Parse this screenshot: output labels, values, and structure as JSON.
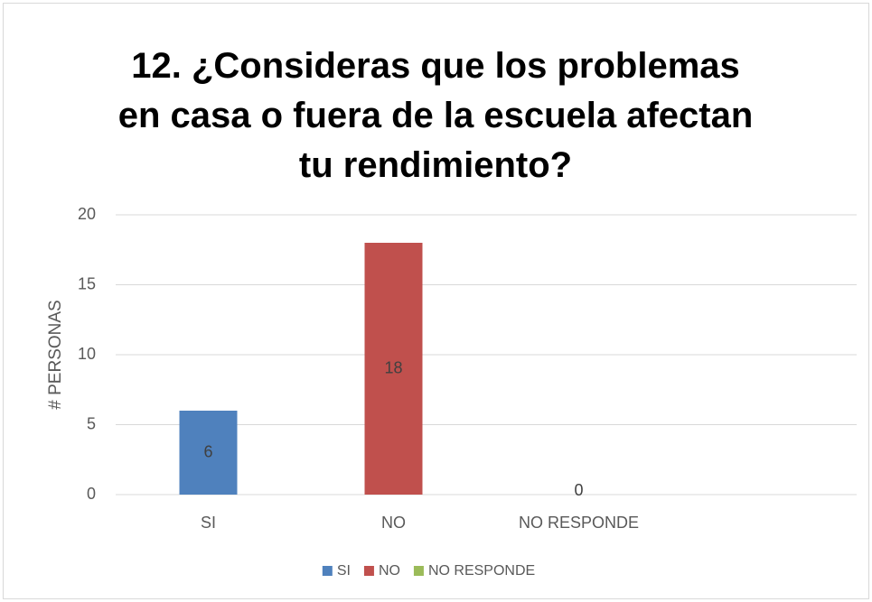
{
  "chart_data": {
    "type": "bar",
    "title": "12. ¿Consideras que los problemas en casa o fuera de la escuela afectan tu rendimiento?",
    "y_label": "# PERSONAS",
    "categories": [
      "SI",
      "NO",
      "NO RESPONDE",
      null
    ],
    "values": [
      6,
      18,
      0,
      null
    ],
    "colors": [
      "#4f81bd",
      "#c0504d",
      "#9bbb59",
      null
    ],
    "ylim": [
      0,
      20
    ],
    "yticks": [
      0,
      5,
      10,
      15,
      20
    ],
    "grid": true,
    "legend": "bottom"
  }
}
